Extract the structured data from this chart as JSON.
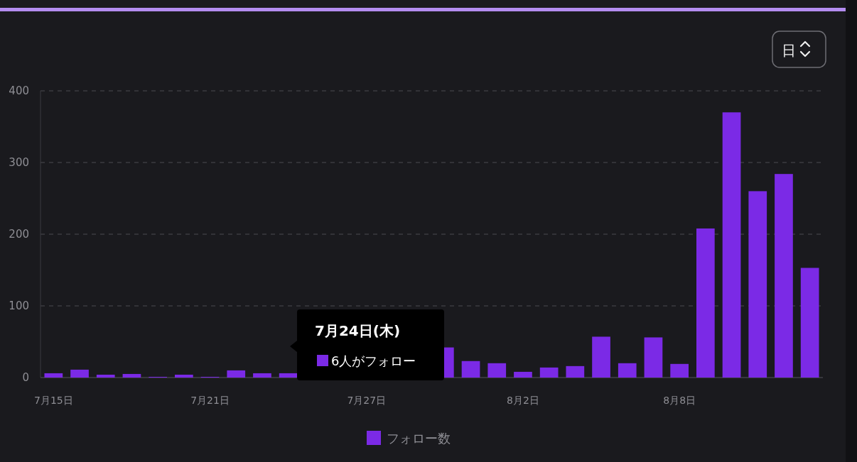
{
  "chart_data": {
    "type": "bar",
    "categories": [
      "7月15日",
      null,
      null,
      null,
      null,
      null,
      "7月21日",
      null,
      null,
      null,
      null,
      null,
      "7月27日",
      null,
      null,
      null,
      null,
      null,
      "8月2日",
      null,
      null,
      null,
      null,
      null,
      "8月8日",
      null,
      null,
      null,
      null,
      null
    ],
    "series": [
      {
        "name": "フォロー数",
        "color": "#7b2ae6",
        "values": [
          6,
          11,
          4,
          5,
          1,
          4,
          1,
          10,
          6,
          6,
          null,
          null,
          null,
          null,
          null,
          42,
          23,
          20,
          8,
          14,
          16,
          57,
          20,
          56,
          19,
          208,
          370,
          260,
          284,
          153
        ]
      }
    ],
    "ylim": [
      0,
      400
    ],
    "yticks": [
      0,
      100,
      200,
      300,
      400
    ],
    "grid": "y",
    "legend": "bottom",
    "annotations": [
      "日",
      "7月24日(木)",
      "6人がフォロー"
    ]
  }
}
